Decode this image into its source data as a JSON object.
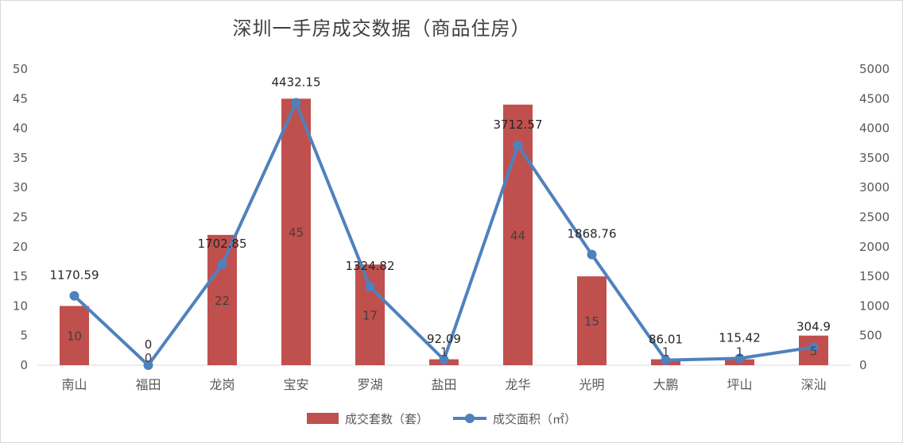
{
  "chart_data": {
    "type": "bar",
    "title": "深圳一手房成交数据（商品住房）",
    "categories": [
      "南山",
      "福田",
      "龙岗",
      "宝安",
      "罗湖",
      "盐田",
      "龙华",
      "光明",
      "大鹏",
      "坪山",
      "深汕"
    ],
    "series": [
      {
        "name": "成交套数（套）",
        "type": "bar",
        "axis": "left",
        "color": "#c0504d",
        "values": [
          10,
          0,
          22,
          45,
          17,
          1,
          44,
          15,
          1,
          1,
          5
        ],
        "labels": [
          "10",
          "0",
          "22",
          "45",
          "17",
          "1",
          "44",
          "15",
          "1",
          "1",
          "5"
        ]
      },
      {
        "name": "成交面积（㎡）",
        "type": "line",
        "axis": "right",
        "color": "#4f81bd",
        "values": [
          1170.59,
          0,
          1702.85,
          4432.15,
          1324.82,
          92.09,
          3712.57,
          1868.76,
          86.01,
          115.42,
          304.9
        ],
        "labels": [
          "1170.59",
          "0",
          "1702.85",
          "4432.15",
          "1324.82",
          "92.09",
          "3712.57",
          "1868.76",
          "86.01",
          "115.42",
          "304.9"
        ]
      }
    ],
    "y_left": {
      "min": 0,
      "max": 50,
      "step": 5
    },
    "y_right": {
      "min": 0,
      "max": 5000,
      "step": 500
    },
    "legend_position": "bottom",
    "grid": false
  }
}
